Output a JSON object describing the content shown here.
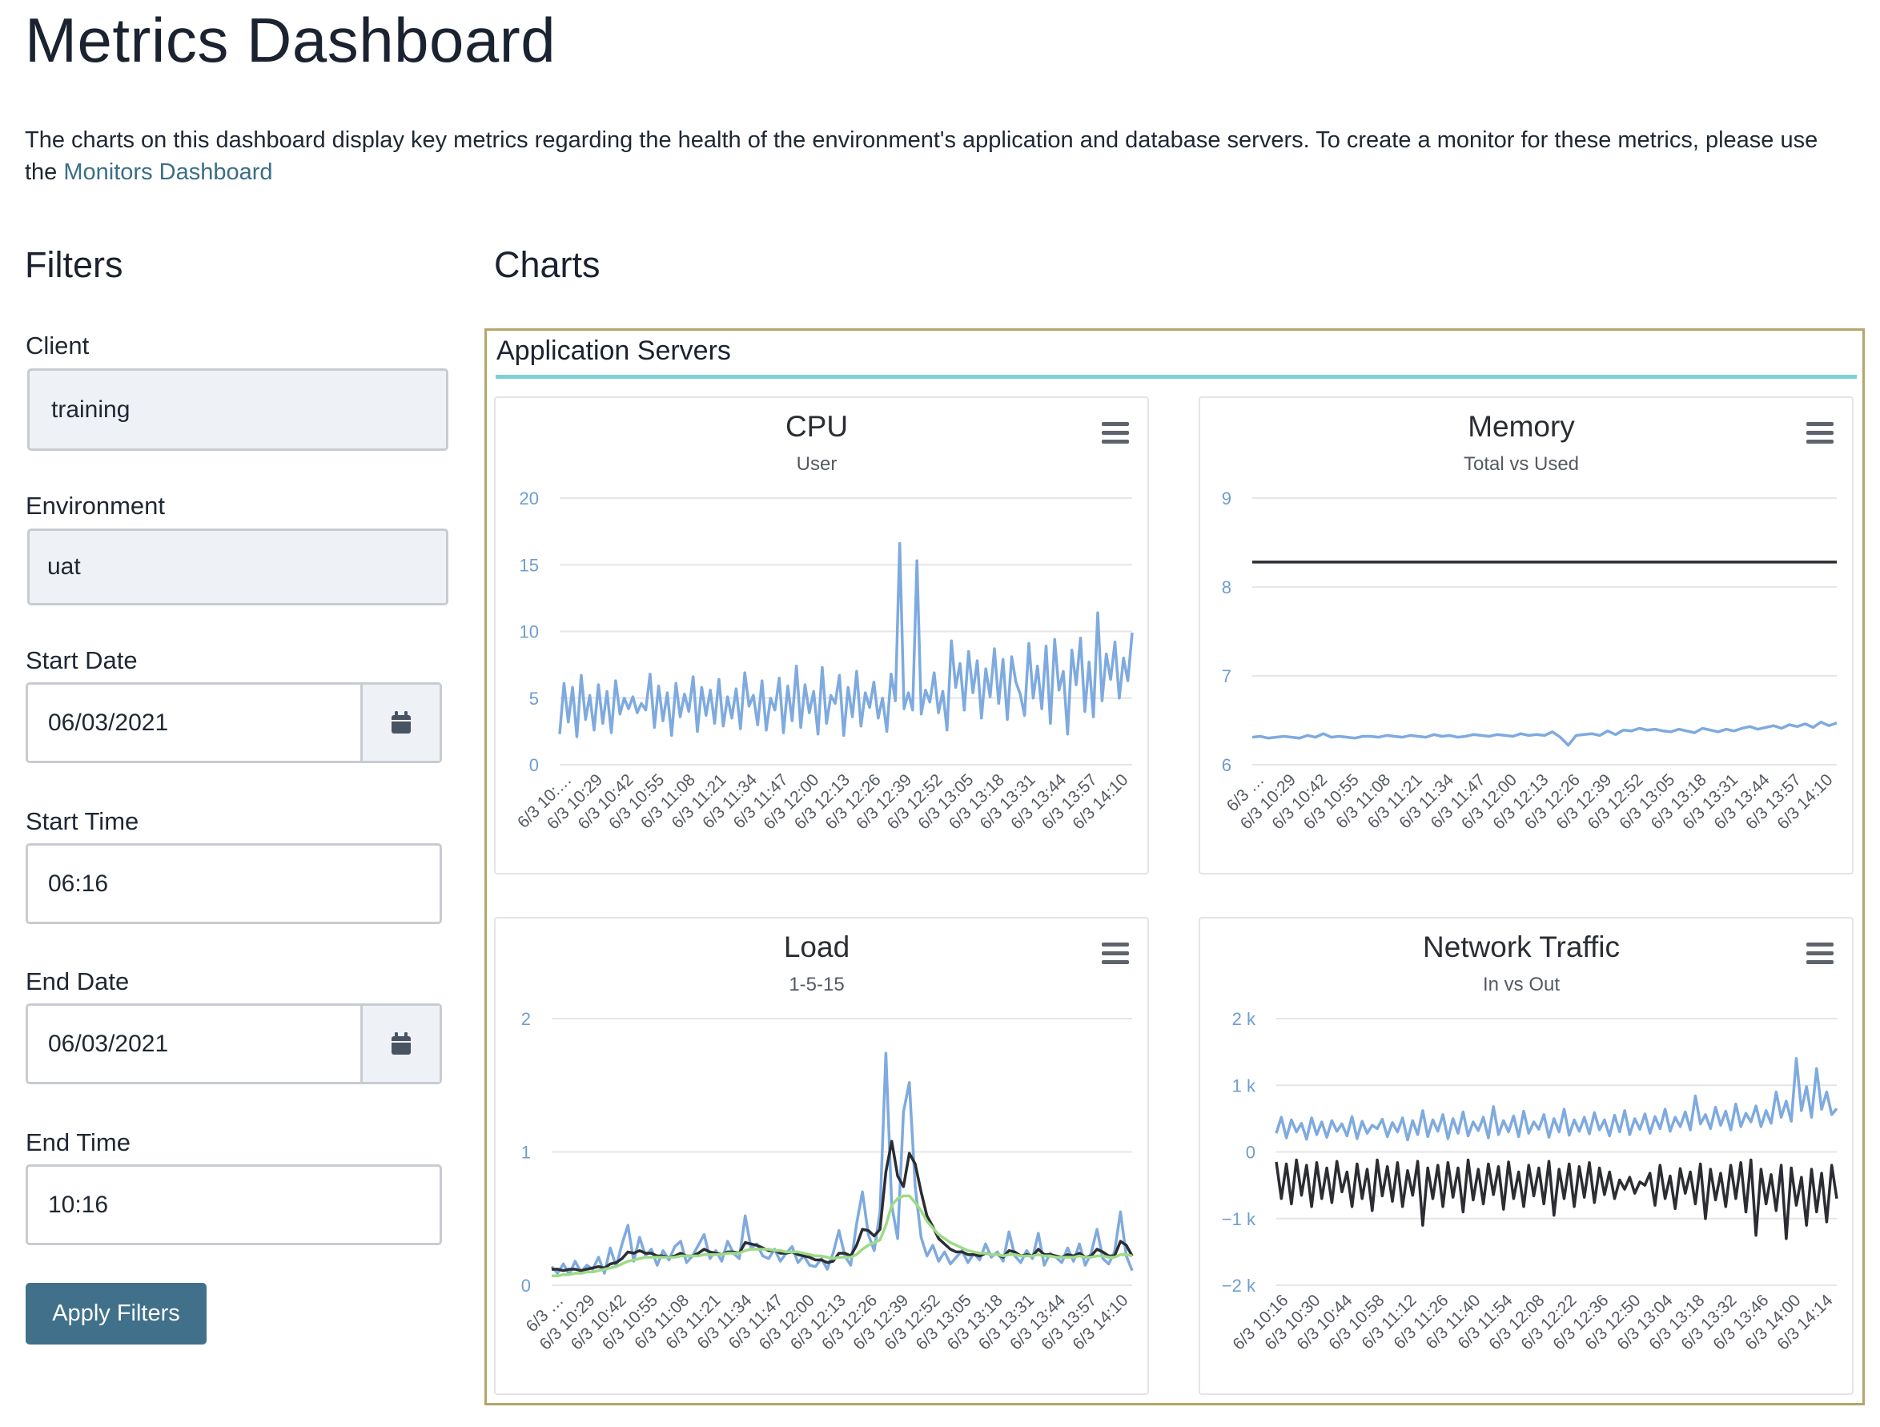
{
  "page": {
    "title": "Metrics Dashboard",
    "intro_text": "The charts on this dashboard display key metrics regarding the health of the environment's application and database servers. To create a monitor for these metrics, please use the ",
    "intro_link": "Monitors Dashboard"
  },
  "filters": {
    "heading": "Filters",
    "client_label": "Client",
    "client_value": "training",
    "environment_label": "Environment",
    "environment_value": "uat",
    "start_date_label": "Start Date",
    "start_date_value": "06/03/2021",
    "start_time_label": "Start Time",
    "start_time_value": "06:16",
    "end_date_label": "End Date",
    "end_date_value": "06/03/2021",
    "end_time_label": "End Time",
    "end_time_value": "10:16",
    "apply_label": "Apply Filters"
  },
  "charts_section": {
    "heading": "Charts",
    "panel_title": "Application Servers"
  },
  "icons": {
    "calendar": "calendar-icon",
    "menu": "hamburger-menu-icon"
  },
  "colors": {
    "link": "#3b6e87",
    "button": "#41718a",
    "panel_border": "#b6a56a",
    "panel_rule": "#7fd0d6",
    "series_blue": "#7eaadf",
    "series_dark": "#2b2d33",
    "series_green": "#9ddb86",
    "axis_label": "#6f9dcf"
  },
  "chart_data": [
    {
      "id": "cpu",
      "type": "line",
      "title": "CPU",
      "subtitle": "User",
      "yticks": [
        "0",
        "5",
        "10",
        "15",
        "20"
      ],
      "ylim": [
        0,
        20
      ],
      "xticks": [
        "6/3 10:…",
        "6/3 10:29",
        "6/3 10:42",
        "6/3 10:55",
        "6/3 11:08",
        "6/3 11:21",
        "6/3 11:34",
        "6/3 11:47",
        "6/3 12:00",
        "6/3 12:13",
        "6/3 12:26",
        "6/3 12:39",
        "6/3 12:52",
        "6/3 13:05",
        "6/3 13:18",
        "6/3 13:31",
        "6/3 13:44",
        "6/3 13:57",
        "6/3 14:10"
      ],
      "grid": true,
      "series": [
        {
          "values": [
            2.3,
            6.1,
            3.2,
            5.8,
            2.1,
            6.7,
            3.4,
            5.2,
            2.6,
            6.0,
            3.1,
            5.5,
            2.4,
            6.3,
            3.8,
            5.0,
            4.2,
            5.1,
            3.9,
            4.6,
            4.1,
            6.8,
            2.8,
            5.9,
            3.3,
            5.4,
            2.2,
            6.1,
            3.6,
            5.3,
            4.0,
            6.6,
            2.5,
            5.8,
            3.7,
            5.6,
            3.1,
            6.4,
            2.9,
            5.1,
            3.5,
            5.7,
            2.7,
            6.9,
            4.4,
            5.2,
            3.0,
            6.3,
            2.6,
            5.0,
            4.1,
            6.5,
            2.4,
            5.9,
            3.3,
            7.4,
            2.8,
            6.0,
            3.9,
            5.5,
            2.3,
            7.3,
            3.1,
            5.2,
            4.6,
            6.7,
            2.2,
            5.8,
            3.6,
            7.0,
            2.9,
            5.4,
            4.3,
            6.2,
            3.5,
            5.0,
            2.5,
            6.8,
            4.8,
            16.6,
            4.2,
            5.4,
            4.1,
            15.3,
            3.8,
            5.6,
            4.7,
            6.9,
            3.9,
            5.5,
            2.6,
            9.3,
            5.8,
            7.6,
            4.1,
            8.5,
            5.4,
            7.8,
            3.5,
            7.2,
            5.1,
            8.7,
            4.6,
            7.9,
            3.4,
            8.1,
            6.2,
            5.3,
            3.7,
            9.1,
            5.0,
            7.4,
            4.2,
            8.9,
            3.1,
            9.4,
            5.6,
            7.0,
            2.3,
            8.6,
            6.0,
            9.5,
            4.0,
            7.7,
            3.6,
            11.4,
            4.8,
            8.3,
            6.4,
            9.2,
            5.0,
            8.0,
            6.3,
            9.9
          ]
        }
      ]
    },
    {
      "id": "memory",
      "type": "line",
      "title": "Memory",
      "subtitle": "Total vs Used",
      "yticks": [
        "6",
        "7",
        "8",
        "9"
      ],
      "ylim": [
        6,
        9
      ],
      "xticks": [
        "6/3 …",
        "6/3 10:29",
        "6/3 10:42",
        "6/3 10:55",
        "6/3 11:08",
        "6/3 11:21",
        "6/3 11:34",
        "6/3 11:47",
        "6/3 12:00",
        "6/3 12:13",
        "6/3 12:26",
        "6/3 12:39",
        "6/3 12:52",
        "6/3 13:05",
        "6/3 13:18",
        "6/3 13:31",
        "6/3 13:44",
        "6/3 13:57",
        "6/3 14:10"
      ],
      "grid": true,
      "series": [
        {
          "name": "Total",
          "color": "#2b2d33",
          "values": [
            8.28,
            8.28,
            8.28,
            8.28,
            8.28,
            8.28,
            8.28,
            8.28,
            8.28,
            8.28,
            8.28,
            8.28,
            8.28,
            8.28,
            8.28,
            8.28,
            8.28,
            8.28,
            8.28,
            8.28,
            8.28,
            8.28,
            8.28,
            8.28,
            8.28,
            8.28,
            8.28,
            8.28,
            8.28,
            8.28,
            8.28,
            8.28,
            8.28,
            8.28,
            8.28,
            8.28,
            8.28,
            8.28,
            8.28,
            8.28,
            8.28,
            8.28,
            8.28,
            8.28,
            8.28,
            8.28,
            8.28,
            8.28,
            8.28,
            8.28,
            8.28,
            8.28,
            8.28,
            8.28,
            8.28,
            8.28,
            8.28,
            8.28,
            8.28,
            8.28
          ]
        },
        {
          "name": "Used",
          "color": "#7eaadf",
          "values": [
            6.31,
            6.32,
            6.3,
            6.31,
            6.32,
            6.31,
            6.3,
            6.33,
            6.31,
            6.35,
            6.31,
            6.32,
            6.31,
            6.3,
            6.32,
            6.32,
            6.31,
            6.33,
            6.32,
            6.31,
            6.33,
            6.32,
            6.31,
            6.34,
            6.32,
            6.33,
            6.31,
            6.32,
            6.34,
            6.33,
            6.32,
            6.34,
            6.33,
            6.32,
            6.35,
            6.33,
            6.34,
            6.33,
            6.37,
            6.31,
            6.22,
            6.33,
            6.34,
            6.35,
            6.33,
            6.38,
            6.34,
            6.39,
            6.38,
            6.41,
            6.39,
            6.4,
            6.38,
            6.37,
            6.4,
            6.38,
            6.36,
            6.41,
            6.39,
            6.37,
            6.4,
            6.38,
            6.41,
            6.43,
            6.4,
            6.42,
            6.44,
            6.41,
            6.45,
            6.43,
            6.46,
            6.42,
            6.48,
            6.44,
            6.47
          ]
        }
      ]
    },
    {
      "id": "load",
      "type": "line",
      "title": "Load",
      "subtitle": "1-5-15",
      "yticks": [
        "0",
        "1",
        "2"
      ],
      "ylim": [
        0,
        2
      ],
      "xticks": [
        "6/3 …",
        "6/3 10:29",
        "6/3 10:42",
        "6/3 10:55",
        "6/3 11:08",
        "6/3 11:21",
        "6/3 11:34",
        "6/3 11:47",
        "6/3 12:00",
        "6/3 12:13",
        "6/3 12:26",
        "6/3 12:39",
        "6/3 12:52",
        "6/3 13:05",
        "6/3 13:18",
        "6/3 13:31",
        "6/3 13:44",
        "6/3 13:57",
        "6/3 14:10"
      ],
      "grid": true,
      "series": [
        {
          "name": "1",
          "color": "#7eaadf",
          "values": [
            0.14,
            0.09,
            0.16,
            0.08,
            0.18,
            0.1,
            0.15,
            0.12,
            0.21,
            0.09,
            0.28,
            0.14,
            0.31,
            0.45,
            0.18,
            0.36,
            0.22,
            0.27,
            0.15,
            0.26,
            0.19,
            0.29,
            0.33,
            0.17,
            0.22,
            0.3,
            0.38,
            0.2,
            0.26,
            0.18,
            0.33,
            0.24,
            0.2,
            0.52,
            0.28,
            0.31,
            0.22,
            0.2,
            0.27,
            0.18,
            0.24,
            0.29,
            0.17,
            0.22,
            0.15,
            0.14,
            0.2,
            0.12,
            0.24,
            0.41,
            0.22,
            0.15,
            0.46,
            0.7,
            0.38,
            0.26,
            0.55,
            1.74,
            0.6,
            0.35,
            1.3,
            1.52,
            0.74,
            0.36,
            0.22,
            0.3,
            0.18,
            0.25,
            0.16,
            0.21,
            0.26,
            0.17,
            0.24,
            0.19,
            0.31,
            0.21,
            0.25,
            0.18,
            0.4,
            0.22,
            0.17,
            0.26,
            0.2,
            0.39,
            0.15,
            0.24,
            0.21,
            0.17,
            0.28,
            0.18,
            0.31,
            0.15,
            0.24,
            0.42,
            0.2,
            0.16,
            0.25,
            0.55,
            0.22,
            0.11
          ]
        },
        {
          "name": "5",
          "color": "#2b2d33",
          "values": [
            0.12,
            0.12,
            0.11,
            0.12,
            0.12,
            0.11,
            0.12,
            0.13,
            0.14,
            0.13,
            0.16,
            0.17,
            0.2,
            0.25,
            0.24,
            0.26,
            0.24,
            0.24,
            0.22,
            0.22,
            0.21,
            0.22,
            0.24,
            0.22,
            0.22,
            0.24,
            0.27,
            0.25,
            0.24,
            0.23,
            0.25,
            0.25,
            0.24,
            0.32,
            0.31,
            0.3,
            0.28,
            0.26,
            0.26,
            0.24,
            0.24,
            0.25,
            0.23,
            0.22,
            0.21,
            0.19,
            0.19,
            0.17,
            0.18,
            0.24,
            0.24,
            0.22,
            0.3,
            0.42,
            0.41,
            0.37,
            0.42,
            0.85,
            1.08,
            0.82,
            0.74,
            0.99,
            0.91,
            0.7,
            0.52,
            0.44,
            0.35,
            0.31,
            0.27,
            0.25,
            0.25,
            0.23,
            0.23,
            0.22,
            0.24,
            0.23,
            0.23,
            0.21,
            0.26,
            0.25,
            0.22,
            0.23,
            0.22,
            0.27,
            0.23,
            0.23,
            0.22,
            0.21,
            0.23,
            0.22,
            0.24,
            0.21,
            0.22,
            0.27,
            0.25,
            0.22,
            0.22,
            0.33,
            0.3,
            0.22
          ]
        },
        {
          "name": "15",
          "color": "#9ddb86",
          "values": [
            0.07,
            0.07,
            0.08,
            0.08,
            0.09,
            0.09,
            0.1,
            0.1,
            0.11,
            0.12,
            0.13,
            0.14,
            0.16,
            0.18,
            0.19,
            0.2,
            0.21,
            0.21,
            0.21,
            0.21,
            0.21,
            0.21,
            0.22,
            0.22,
            0.22,
            0.22,
            0.23,
            0.23,
            0.23,
            0.23,
            0.24,
            0.24,
            0.24,
            0.26,
            0.27,
            0.27,
            0.27,
            0.27,
            0.26,
            0.26,
            0.25,
            0.25,
            0.25,
            0.24,
            0.23,
            0.22,
            0.22,
            0.21,
            0.2,
            0.21,
            0.21,
            0.21,
            0.23,
            0.27,
            0.3,
            0.32,
            0.34,
            0.45,
            0.6,
            0.65,
            0.67,
            0.67,
            0.62,
            0.56,
            0.48,
            0.43,
            0.38,
            0.35,
            0.32,
            0.3,
            0.28,
            0.26,
            0.25,
            0.24,
            0.24,
            0.23,
            0.23,
            0.22,
            0.23,
            0.23,
            0.22,
            0.22,
            0.22,
            0.23,
            0.22,
            0.22,
            0.21,
            0.21,
            0.21,
            0.21,
            0.22,
            0.21,
            0.21,
            0.22,
            0.22,
            0.21,
            0.21,
            0.23,
            0.23,
            0.22
          ]
        }
      ]
    },
    {
      "id": "network",
      "type": "line",
      "title": "Network Traffic",
      "subtitle": "In vs Out",
      "yticks": [
        "−2 k",
        "−1 k",
        "0",
        "1 k",
        "2 k"
      ],
      "ylim": [
        -2000,
        2000
      ],
      "xticks": [
        "6/3 10:16",
        "6/3 10:30",
        "6/3 10:44",
        "6/3 10:58",
        "6/3 11:12",
        "6/3 11:26",
        "6/3 11:40",
        "6/3 11:54",
        "6/3 12:08",
        "6/3 12:22",
        "6/3 12:36",
        "6/3 12:50",
        "6/3 13:04",
        "6/3 13:18",
        "6/3 13:32",
        "6/3 13:46",
        "6/3 14:00",
        "6/3 14:14"
      ],
      "grid": true,
      "series": [
        {
          "name": "In",
          "color": "#7eaadf",
          "values": [
            280,
            520,
            210,
            480,
            300,
            430,
            190,
            510,
            260,
            450,
            220,
            470,
            310,
            420,
            240,
            530,
            200,
            460,
            280,
            400,
            350,
            490,
            230,
            440,
            300,
            510,
            180,
            470,
            260,
            620,
            230,
            480,
            310,
            560,
            200,
            500,
            280,
            600,
            240,
            450,
            320,
            520,
            210,
            680,
            260,
            470,
            300,
            540,
            230,
            610,
            280,
            450,
            340,
            560,
            220,
            500,
            300,
            640,
            250,
            480,
            310,
            520,
            270,
            590,
            330,
            480,
            240,
            550,
            300,
            620,
            260,
            500,
            340,
            570,
            280,
            530,
            350,
            640,
            310,
            520,
            380,
            600,
            330,
            840,
            420,
            560,
            350,
            670,
            400,
            610,
            330,
            720,
            380,
            580,
            450,
            690,
            380,
            620,
            430,
            900,
            520,
            760,
            460,
            1400,
            620,
            980,
            520,
            1250,
            640,
            900,
            560,
            650
          ]
        },
        {
          "name": "Out",
          "color": "#2b2d33",
          "values": [
            -150,
            -700,
            -180,
            -780,
            -120,
            -650,
            -200,
            -820,
            -160,
            -700,
            -240,
            -760,
            -140,
            -600,
            -300,
            -820,
            -180,
            -700,
            -260,
            -880,
            -120,
            -660,
            -220,
            -740,
            -160,
            -820,
            -280,
            -650,
            -140,
            -1100,
            -240,
            -700,
            -200,
            -820,
            -160,
            -680,
            -240,
            -900,
            -120,
            -720,
            -260,
            -780,
            -180,
            -640,
            -220,
            -860,
            -150,
            -700,
            -300,
            -820,
            -200,
            -660,
            -240,
            -780,
            -140,
            -950,
            -260,
            -700,
            -180,
            -820,
            -220,
            -680,
            -160,
            -760,
            -240,
            -640,
            -300,
            -700,
            -420,
            -560,
            -380,
            -620,
            -450,
            -500,
            -320,
            -800,
            -200,
            -700,
            -360,
            -850,
            -250,
            -620,
            -300,
            -780,
            -180,
            -1000,
            -260,
            -720,
            -320,
            -820,
            -200,
            -700,
            -160,
            -900,
            -120,
            -1250,
            -260,
            -780,
            -340,
            -880,
            -200,
            -1300,
            -240,
            -800,
            -380,
            -1100,
            -260,
            -900,
            -320,
            -1050,
            -200,
            -700
          ]
        }
      ]
    }
  ]
}
